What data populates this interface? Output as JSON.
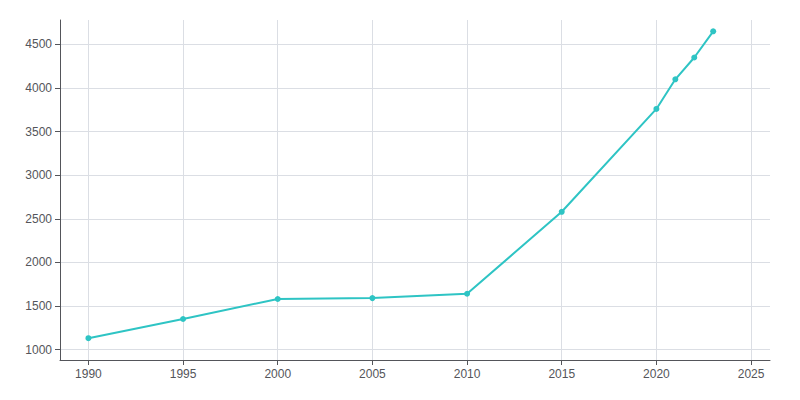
{
  "chart_data": {
    "type": "line",
    "x": [
      1990,
      1995,
      2000,
      2005,
      2010,
      2015,
      2020,
      2021,
      2022,
      2023
    ],
    "values": [
      1130,
      1350,
      1580,
      1590,
      1640,
      2580,
      3760,
      4100,
      4350,
      4650
    ],
    "color": "#2EC4C4",
    "marker": "circle",
    "xlim": [
      1988.5,
      2026
    ],
    "ylim": [
      880,
      4780
    ],
    "xticks": [
      1990,
      1995,
      2000,
      2005,
      2010,
      2015,
      2020,
      2025
    ],
    "yticks": [
      1000,
      1500,
      2000,
      2500,
      3000,
      3500,
      4000,
      4500
    ],
    "grid": true
  }
}
